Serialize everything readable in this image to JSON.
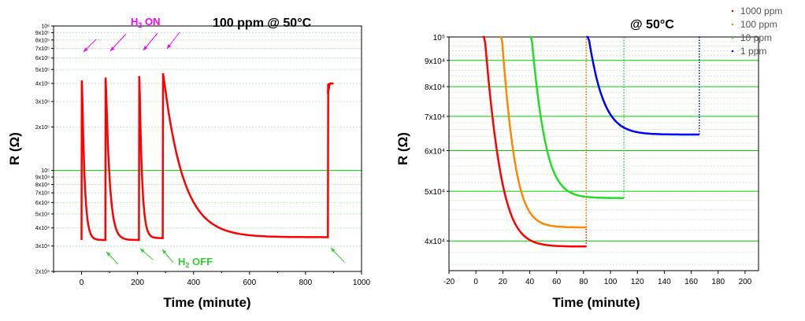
{
  "chart_data": [
    {
      "type": "line",
      "title": "100 ppm @ 50°C",
      "xlabel": "Time (minute)",
      "ylabel": "R (Ω)",
      "yscale": "log",
      "xlim": [
        -100,
        1000
      ],
      "ylim": [
        20000,
        1000000
      ],
      "xticks": [
        0,
        200,
        400,
        600,
        800,
        1000
      ],
      "x_tick_labels": [
        "0",
        "200",
        "400",
        "600",
        "800",
        "1000"
      ],
      "yticks": [
        20000,
        30000,
        40000,
        50000,
        60000,
        70000,
        80000,
        90000,
        100000,
        200000,
        300000,
        400000,
        500000,
        600000,
        700000,
        800000,
        900000,
        1000000
      ],
      "y_tick_labels": [
        "2x10⁴",
        "3x10⁴",
        "4x10⁴",
        "5x10⁴",
        "6x10⁴",
        "7x10⁴",
        "8x10⁴",
        "9x10⁴",
        "10⁵",
        "2x10⁵",
        "3x10⁵",
        "4x10⁵",
        "5x10⁵",
        "6x10⁵",
        "7x10⁵",
        "8x10⁵",
        "9x10⁵",
        "10⁶"
      ],
      "grid": true,
      "series_color": "#ff0000",
      "cycles": [
        {
          "on": 0,
          "off": 80,
          "peak": 420000,
          "base": 33000
        },
        {
          "on": 85,
          "off": 200,
          "peak": 440000,
          "base": 33000
        },
        {
          "on": 205,
          "off": 285,
          "peak": 450000,
          "base": 34000
        },
        {
          "on": 290,
          "off": 875,
          "peak": 470000,
          "base": 34500
        },
        {
          "on": 880,
          "off": 900,
          "peak": 400000,
          "base": 34500
        }
      ],
      "annotations": [
        {
          "text_main": "H",
          "text_sub": "2",
          "text_rest": " ON",
          "color": "#ff00ff"
        },
        {
          "text_main": "H",
          "text_sub": "2",
          "text_rest": " OFF",
          "color": "#33cc33"
        }
      ]
    },
    {
      "type": "line",
      "title": "@ 50°C",
      "xlabel": "Time (minute)",
      "ylabel": "R (Ω)",
      "xlim": [
        -20,
        210
      ],
      "ylim": [
        35000,
        100000
      ],
      "xticks": [
        -20,
        0,
        20,
        40,
        60,
        80,
        100,
        120,
        140,
        160,
        180,
        200
      ],
      "x_tick_labels": [
        "-20",
        "0",
        "20",
        "40",
        "60",
        "80",
        "100",
        "120",
        "140",
        "160",
        "180",
        "200"
      ],
      "yticks": [
        40000,
        50000,
        60000,
        70000,
        80000,
        90000,
        100000
      ],
      "y_tick_labels": [
        "4x10⁴",
        "5x10⁴",
        "6x10⁴",
        "7x10⁴",
        "8x10⁴",
        "9x10⁴",
        "10⁵"
      ],
      "grid": true,
      "legend_position": "top-right",
      "series": [
        {
          "name": "1000 ppm",
          "color": "#ff0000",
          "on": 5,
          "off": 82,
          "base": 39000
        },
        {
          "name": "100 ppm",
          "color": "#ff8800",
          "on": 18,
          "off": 82,
          "base": 42500
        },
        {
          "name": "10 ppm",
          "color": "#22dd22",
          "on": 40,
          "off": 110,
          "base": 48500
        },
        {
          "name": "1 ppm",
          "color": "#0000ff",
          "on": 82,
          "off": 166,
          "base": 64500
        }
      ]
    }
  ]
}
